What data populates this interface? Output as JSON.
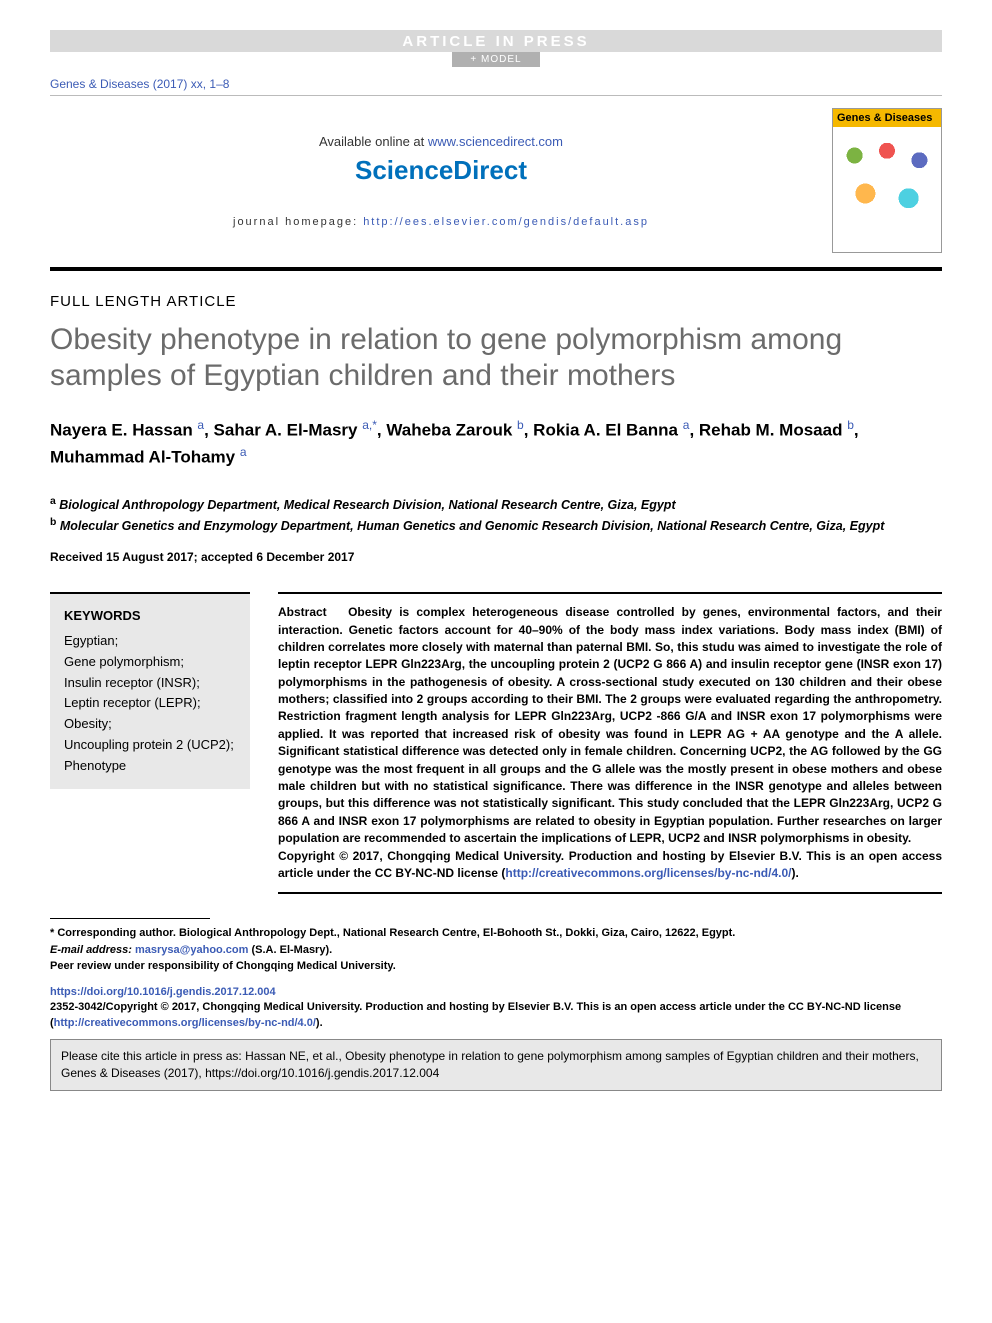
{
  "top": {
    "article_in_press": "ARTICLE IN PRESS",
    "model_badge": "+ MODEL",
    "citation": "Genes & Diseases (2017) xx, 1–8"
  },
  "header": {
    "available_prefix": "Available online at ",
    "available_link": "www.sciencedirect.com",
    "logo_text": "ScienceDirect",
    "homepage_prefix": "journal homepage: ",
    "homepage_link": "http://ees.elsevier.com/gendis/default.asp",
    "cover_title": "Genes & Diseases"
  },
  "article": {
    "type": "FULL LENGTH ARTICLE",
    "title": "Obesity phenotype in relation to gene polymorphism among samples of Egyptian children and their mothers",
    "authors_html": "Nayera E. Hassan <sup>a</sup>, Sahar A. El-Masry <sup>a,*</sup>, Waheba Zarouk <sup>b</sup>, Rokia A. El Banna <sup>a</sup>, Rehab M. Mosaad <sup>b</sup>, Muhammad Al-Tohamy <sup>a</sup>",
    "affiliations": [
      {
        "sup": "a",
        "text": "Biological Anthropology Department, Medical Research Division, National Research Centre, Giza, Egypt"
      },
      {
        "sup": "b",
        "text": "Molecular Genetics and Enzymology Department, Human Genetics and Genomic Research Division, National Research Centre, Giza, Egypt"
      }
    ],
    "dates": "Received 15 August 2017; accepted 6 December 2017"
  },
  "keywords": {
    "heading": "KEYWORDS",
    "items": [
      "Egyptian;",
      "Gene polymorphism;",
      "Insulin receptor (INSR);",
      "Leptin receptor (LEPR);",
      "Obesity;",
      "Uncoupling protein 2 (UCP2);",
      "Phenotype"
    ]
  },
  "abstract": {
    "label": "Abstract",
    "body": "Obesity is complex heterogeneous disease controlled by genes, environmental factors, and their interaction. Genetic factors account for 40–90% of the body mass index variations. Body mass index (BMI) of children correlates more closely with maternal than paternal BMI. So, this studu was aimed to investigate the role of leptin receptor LEPR Gln223Arg, the uncoupling protein 2 (UCP2 G 866 A) and insulin receptor gene (INSR exon 17) polymorphisms in the pathogenesis of obesity. A cross-sectional study executed on 130 children and their obese mothers; classified into 2 groups according to their BMI. The 2 groups were evaluated regarding the anthropometry. Restriction fragment length analysis for LEPR Gln223Arg, UCP2 -866 G/A and INSR exon 17 polymorphisms were applied. It was reported that increased risk of obesity was found in LEPR AG + AA genotype and the A allele. Significant statistical difference was detected only in female children. Concerning UCP2, the AG followed by the GG genotype was the most frequent in all groups and the G allele was the mostly present in obese mothers and obese male children but with no statistical significance. There was difference in the INSR genotype and alleles between groups, but this difference was not statistically significant. This study concluded that the LEPR Gln223Arg, UCP2 G 866 A and INSR exon 17 polymorphisms are related to obesity in Egyptian population. Further researches on larger population are recommended to ascertain the implications of LEPR, UCP2 and INSR polymorphisms in obesity.",
    "copyright_prefix": "Copyright © 2017, Chongqing Medical University. Production and hosting by Elsevier B.V. This is an open access article under the CC BY-NC-ND license (",
    "license_link": "http://creativecommons.org/licenses/by-nc-nd/4.0/",
    "copyright_suffix": ")."
  },
  "footnotes": {
    "corresponding": "* Corresponding author. Biological Anthropology Dept., National Research Centre, El-Bohooth St., Dokki, Giza, Cairo, 12622, Egypt.",
    "email_label": "E-mail address: ",
    "email": "masrysa@yahoo.com",
    "email_suffix": " (S.A. El-Masry).",
    "peer_review": "Peer review under responsibility of Chongqing Medical University."
  },
  "doi": {
    "link": "https://doi.org/10.1016/j.gendis.2017.12.004",
    "issn_line_prefix": "2352-3042/Copyright © 2017, Chongqing Medical University. Production and hosting by Elsevier B.V. This is an open access article under the CC BY-NC-ND license (",
    "license_link": "http://creativecommons.org/licenses/by-nc-nd/4.0/",
    "issn_line_suffix": ")."
  },
  "cite_box": "Please cite this article in press as: Hassan NE, et al., Obesity phenotype in relation to gene polymorphism among samples of Egyptian children and their mothers, Genes & Diseases (2017), https://doi.org/10.1016/j.gendis.2017.12.004",
  "colors": {
    "link": "#3b5bb5",
    "title_grey": "#6b6b6b",
    "box_bg": "#e8e8e8",
    "sd_blue": "#0070bb",
    "cover_yellow": "#f5b800"
  }
}
